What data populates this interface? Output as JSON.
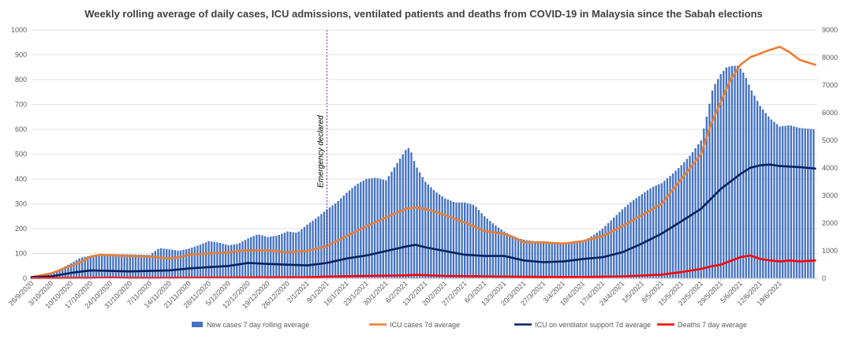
{
  "chart_data": {
    "type": "bar",
    "title": "Weekly rolling average of daily cases, ICU admissions, ventilated patients and deaths from COVID-19 in Malaysia since the Sabah elections",
    "xlabel": "",
    "ylabel_left": "",
    "ylabel_right": "",
    "ylim_left": [
      0,
      1000
    ],
    "ylim_right": [
      0,
      9000
    ],
    "yticks_left": [
      "0",
      "100",
      "200",
      "300",
      "400",
      "500",
      "600",
      "700",
      "800",
      "900",
      "1000"
    ],
    "yticks_right": [
      "0",
      "1000",
      "2000",
      "3000",
      "4000",
      "5000",
      "6000",
      "7000",
      "8000",
      "9000"
    ],
    "grid": true,
    "legend_position": "bottom",
    "x_tick_labels": [
      "26/9/2020",
      "3/10/2020",
      "10/10/2020",
      "17/10/2020",
      "24/10/2020",
      "31/10/2020",
      "7/11/2020",
      "14/11/2020",
      "21/11/2020",
      "28/11/2020",
      "5/12/2020",
      "12/12/2020",
      "19/12/2020",
      "26/12/2020",
      "2/1/2021",
      "9/1/2021",
      "16/1/2021",
      "23/1/2021",
      "30/1/2021",
      "6/2/2021",
      "13/2/2021",
      "20/2/2021",
      "27/2/2021",
      "6/3/2021",
      "13/3/2021",
      "20/3/2021",
      "27/3/2021",
      "3/4/2021",
      "10/4/2021",
      "17/4/2021",
      "24/4/2021",
      "1/5/2021",
      "8/5/2021",
      "15/5/2021",
      "22/5/2021",
      "29/5/2021",
      "5/6/2021",
      "12/6/2021",
      "19/6/2021"
    ],
    "x_end": 39.9,
    "annotation": {
      "text": "Emergency declared",
      "x_index": 15
    },
    "series": [
      {
        "name": "New cases 7 day rolling average",
        "type": "bar",
        "axis": "right",
        "color": "#4472c4",
        "points": [
          [
            0,
            50
          ],
          [
            1,
            150
          ],
          [
            1.5,
            350
          ],
          [
            2,
            550
          ],
          [
            2.5,
            750
          ],
          [
            3,
            820
          ],
          [
            3.5,
            850
          ],
          [
            4,
            880
          ],
          [
            5,
            870
          ],
          [
            6,
            850
          ],
          [
            6.5,
            1100
          ],
          [
            7,
            1050
          ],
          [
            7.5,
            1000
          ],
          [
            8,
            1080
          ],
          [
            8.5,
            1200
          ],
          [
            9,
            1350
          ],
          [
            9.5,
            1300
          ],
          [
            10,
            1200
          ],
          [
            10.5,
            1250
          ],
          [
            11,
            1450
          ],
          [
            11.5,
            1600
          ],
          [
            12,
            1500
          ],
          [
            12.5,
            1550
          ],
          [
            13,
            1700
          ],
          [
            13.5,
            1650
          ],
          [
            14,
            1950
          ],
          [
            14.5,
            2200
          ],
          [
            15,
            2500
          ],
          [
            15.5,
            2750
          ],
          [
            16,
            3100
          ],
          [
            16.5,
            3400
          ],
          [
            17,
            3600
          ],
          [
            17.5,
            3650
          ],
          [
            18,
            3550
          ],
          [
            18.5,
            4100
          ],
          [
            19,
            4650
          ],
          [
            19.2,
            4750
          ],
          [
            19.5,
            4100
          ],
          [
            20,
            3500
          ],
          [
            20.5,
            3150
          ],
          [
            21,
            2900
          ],
          [
            21.5,
            2750
          ],
          [
            22,
            2750
          ],
          [
            22.5,
            2650
          ],
          [
            23,
            2250
          ],
          [
            23.5,
            1950
          ],
          [
            24,
            1700
          ],
          [
            24.5,
            1500
          ],
          [
            25,
            1400
          ],
          [
            26,
            1300
          ],
          [
            26.5,
            1250
          ],
          [
            27,
            1300
          ],
          [
            27.5,
            1300
          ],
          [
            28,
            1350
          ],
          [
            28.5,
            1550
          ],
          [
            29,
            1800
          ],
          [
            29.5,
            2150
          ],
          [
            30,
            2500
          ],
          [
            30.5,
            2800
          ],
          [
            31,
            3050
          ],
          [
            31.5,
            3300
          ],
          [
            32,
            3450
          ],
          [
            32.5,
            3750
          ],
          [
            33,
            4100
          ],
          [
            33.5,
            4500
          ],
          [
            34,
            5000
          ],
          [
            34.3,
            5900
          ],
          [
            34.6,
            6900
          ],
          [
            35,
            7400
          ],
          [
            35.3,
            7650
          ],
          [
            35.6,
            7700
          ],
          [
            35.9,
            7700
          ],
          [
            36.2,
            7400
          ],
          [
            36.5,
            6900
          ],
          [
            37,
            6250
          ],
          [
            37.5,
            5800
          ],
          [
            38,
            5500
          ],
          [
            38.5,
            5550
          ],
          [
            39,
            5450
          ],
          [
            39.8,
            5400
          ]
        ]
      },
      {
        "name": "ICU cases 7d average",
        "type": "line",
        "axis": "left",
        "color": "#ed7d31",
        "points": [
          [
            0,
            5
          ],
          [
            1,
            20
          ],
          [
            1.8,
            45
          ],
          [
            2.5,
            65
          ],
          [
            3,
            88
          ],
          [
            3.5,
            95
          ],
          [
            4,
            93
          ],
          [
            5,
            90
          ],
          [
            6,
            88
          ],
          [
            7,
            80
          ],
          [
            7.5,
            85
          ],
          [
            8,
            95
          ],
          [
            9,
            100
          ],
          [
            10,
            105
          ],
          [
            11,
            113
          ],
          [
            12,
            112
          ],
          [
            13,
            105
          ],
          [
            14,
            110
          ],
          [
            15,
            130
          ],
          [
            16,
            170
          ],
          [
            17,
            210
          ],
          [
            18,
            245
          ],
          [
            19,
            280
          ],
          [
            19.5,
            285
          ],
          [
            20,
            280
          ],
          [
            21,
            255
          ],
          [
            22,
            225
          ],
          [
            23,
            190
          ],
          [
            24,
            180
          ],
          [
            24.5,
            165
          ],
          [
            25,
            145
          ],
          [
            26,
            145
          ],
          [
            27,
            140
          ],
          [
            28,
            150
          ],
          [
            29,
            170
          ],
          [
            30,
            210
          ],
          [
            31,
            255
          ],
          [
            32,
            300
          ],
          [
            32.7,
            370
          ],
          [
            33.5,
            450
          ],
          [
            34,
            500
          ],
          [
            34.5,
            620
          ],
          [
            35,
            710
          ],
          [
            35.5,
            800
          ],
          [
            36,
            860
          ],
          [
            36.5,
            890
          ],
          [
            37,
            905
          ],
          [
            37.5,
            920
          ],
          [
            38,
            932
          ],
          [
            38.5,
            910
          ],
          [
            39,
            880
          ],
          [
            39.8,
            860
          ]
        ]
      },
      {
        "name": "ICU on ventilator support 7d average",
        "type": "line",
        "axis": "left",
        "color": "#002060",
        "points": [
          [
            0,
            5
          ],
          [
            1,
            8
          ],
          [
            2,
            22
          ],
          [
            3,
            32
          ],
          [
            4,
            30
          ],
          [
            5,
            28
          ],
          [
            6,
            30
          ],
          [
            7,
            32
          ],
          [
            8,
            40
          ],
          [
            9,
            45
          ],
          [
            10,
            50
          ],
          [
            11,
            62
          ],
          [
            12,
            58
          ],
          [
            13,
            55
          ],
          [
            14,
            52
          ],
          [
            15,
            62
          ],
          [
            16,
            80
          ],
          [
            17,
            92
          ],
          [
            18,
            110
          ],
          [
            19,
            128
          ],
          [
            19.5,
            135
          ],
          [
            20,
            125
          ],
          [
            21,
            110
          ],
          [
            22,
            95
          ],
          [
            23,
            90
          ],
          [
            24,
            90
          ],
          [
            25,
            72
          ],
          [
            26,
            65
          ],
          [
            27,
            68
          ],
          [
            28,
            78
          ],
          [
            29,
            85
          ],
          [
            30,
            105
          ],
          [
            31,
            140
          ],
          [
            32,
            180
          ],
          [
            33,
            230
          ],
          [
            34,
            280
          ],
          [
            35,
            360
          ],
          [
            36,
            420
          ],
          [
            36.5,
            445
          ],
          [
            37,
            455
          ],
          [
            37.5,
            458
          ],
          [
            38,
            452
          ],
          [
            39,
            448
          ],
          [
            39.8,
            442
          ]
        ]
      },
      {
        "name": "Deaths 7 day average",
        "type": "line",
        "axis": "left",
        "color": "#ff0000",
        "points": [
          [
            0,
            1
          ],
          [
            3,
            2
          ],
          [
            4,
            3
          ],
          [
            5,
            2
          ],
          [
            6,
            2
          ],
          [
            10,
            3
          ],
          [
            14,
            4
          ],
          [
            15,
            7
          ],
          [
            17,
            10
          ],
          [
            19,
            12
          ],
          [
            19.5,
            14
          ],
          [
            21,
            10
          ],
          [
            23,
            8
          ],
          [
            25,
            6
          ],
          [
            28,
            5
          ],
          [
            30,
            8
          ],
          [
            32,
            15
          ],
          [
            33,
            25
          ],
          [
            34,
            38
          ],
          [
            34.5,
            48
          ],
          [
            35,
            55
          ],
          [
            35.5,
            70
          ],
          [
            36,
            85
          ],
          [
            36.5,
            92
          ],
          [
            37,
            78
          ],
          [
            37.5,
            72
          ],
          [
            38,
            68
          ],
          [
            38.5,
            72
          ],
          [
            39,
            68
          ],
          [
            39.8,
            72
          ]
        ]
      }
    ]
  }
}
